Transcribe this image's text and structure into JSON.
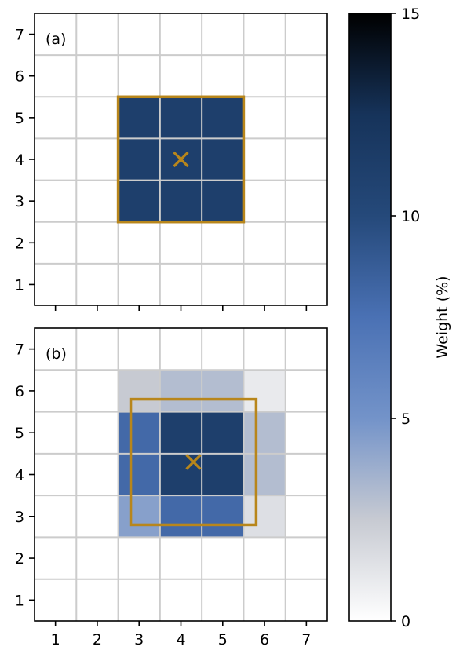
{
  "chart_data": {
    "type": "heatmap",
    "colorbar": {
      "label": "Weight (%)",
      "range": [
        0,
        15
      ],
      "ticks": [
        0,
        5,
        10,
        15
      ],
      "colors": [
        "#ffffff",
        "#c7cad2",
        "#7393c9",
        "#4a71b4",
        "#25497a",
        "#16335a",
        "#000000"
      ]
    },
    "grid": true,
    "accent_color": "#b8861b",
    "panels": [
      {
        "label": "(a)",
        "xlim": [
          0.5,
          7.5
        ],
        "ylim": [
          0.5,
          7.5
        ],
        "xticks": [
          1,
          2,
          3,
          4,
          5,
          6,
          7
        ],
        "yticks": [
          1,
          2,
          3,
          4,
          5,
          6,
          7
        ],
        "show_xtick_labels": false,
        "cells": [
          {
            "x": 3,
            "y": 3,
            "value": 11.1
          },
          {
            "x": 4,
            "y": 3,
            "value": 11.1
          },
          {
            "x": 5,
            "y": 3,
            "value": 11.1
          },
          {
            "x": 3,
            "y": 4,
            "value": 11.1
          },
          {
            "x": 4,
            "y": 4,
            "value": 11.1
          },
          {
            "x": 5,
            "y": 4,
            "value": 11.1
          },
          {
            "x": 3,
            "y": 5,
            "value": 11.1
          },
          {
            "x": 4,
            "y": 5,
            "value": 11.1
          },
          {
            "x": 5,
            "y": 5,
            "value": 11.1
          }
        ],
        "marker": {
          "x": 4.0,
          "y": 4.0
        },
        "box": {
          "x0": 2.5,
          "x1": 5.5,
          "y0": 2.5,
          "y1": 5.5
        }
      },
      {
        "label": "(b)",
        "xlim": [
          0.5,
          7.5
        ],
        "ylim": [
          0.5,
          7.5
        ],
        "xticks": [
          1,
          2,
          3,
          4,
          5,
          6,
          7
        ],
        "yticks": [
          1,
          2,
          3,
          4,
          5,
          6,
          7
        ],
        "show_xtick_labels": true,
        "cells": [
          {
            "x": 3,
            "y": 6,
            "value": 2.5
          },
          {
            "x": 4,
            "y": 6,
            "value": 3.1
          },
          {
            "x": 5,
            "y": 6,
            "value": 3.1
          },
          {
            "x": 6,
            "y": 6,
            "value": 1.0
          },
          {
            "x": 3,
            "y": 5,
            "value": 8.0
          },
          {
            "x": 4,
            "y": 5,
            "value": 11.1
          },
          {
            "x": 5,
            "y": 5,
            "value": 11.1
          },
          {
            "x": 6,
            "y": 5,
            "value": 3.1
          },
          {
            "x": 3,
            "y": 4,
            "value": 8.0
          },
          {
            "x": 4,
            "y": 4,
            "value": 11.1
          },
          {
            "x": 5,
            "y": 4,
            "value": 11.1
          },
          {
            "x": 6,
            "y": 4,
            "value": 3.1
          },
          {
            "x": 3,
            "y": 3,
            "value": 4.4
          },
          {
            "x": 4,
            "y": 3,
            "value": 8.0
          },
          {
            "x": 5,
            "y": 3,
            "value": 8.0
          },
          {
            "x": 6,
            "y": 3,
            "value": 1.5
          }
        ],
        "marker": {
          "x": 4.3,
          "y": 4.3
        },
        "box": {
          "x0": 2.8,
          "x1": 5.8,
          "y0": 2.8,
          "y1": 5.8
        }
      }
    ]
  }
}
